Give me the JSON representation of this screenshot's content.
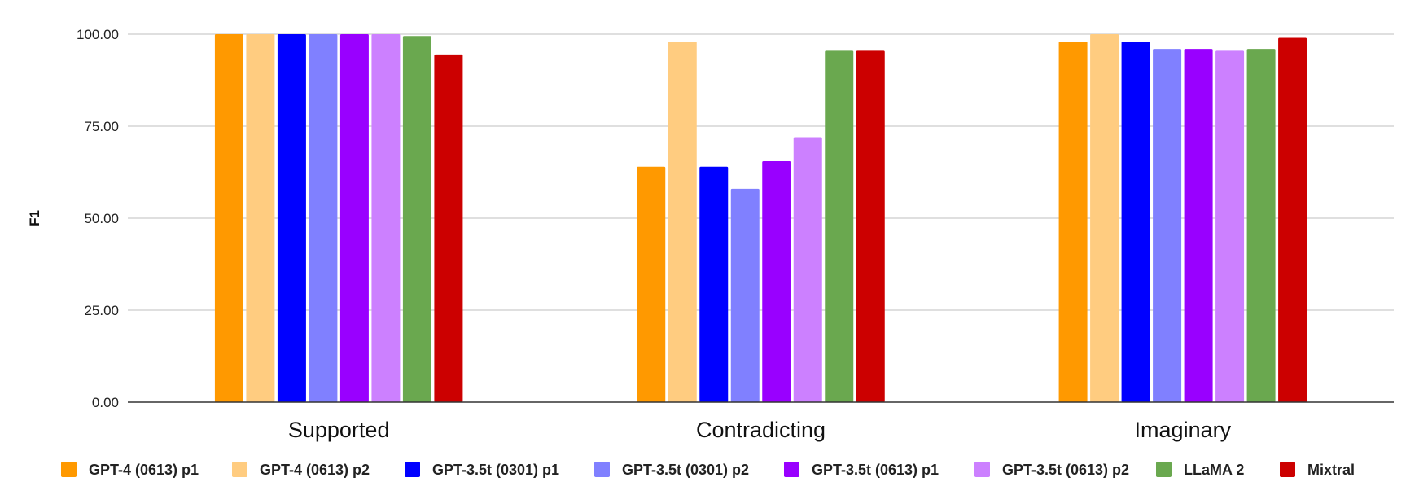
{
  "chart_data": {
    "type": "bar",
    "title": "",
    "xlabel": "",
    "ylabel": "F1",
    "ylim": [
      0,
      100
    ],
    "yticks": [
      "0.00",
      "25.00",
      "50.00",
      "75.00",
      "100.00"
    ],
    "grid": true,
    "legend_position": "bottom",
    "categories": [
      "Supported",
      "Contradicting",
      "Imaginary"
    ],
    "series": [
      {
        "name": "GPT-4 (0613) p1",
        "color": "#ff9900",
        "values": [
          100.0,
          64.0,
          98.0
        ]
      },
      {
        "name": "GPT-4 (0613) p2",
        "color": "#ffcc80",
        "values": [
          100.0,
          98.0,
          100.0
        ]
      },
      {
        "name": "GPT-3.5t (0301) p1",
        "color": "#0000ff",
        "values": [
          100.0,
          64.0,
          98.0
        ]
      },
      {
        "name": "GPT-3.5t (0301) p2",
        "color": "#8080ff",
        "values": [
          100.0,
          58.0,
          96.0
        ]
      },
      {
        "name": "GPT-3.5t (0613) p1",
        "color": "#9900ff",
        "values": [
          100.0,
          65.5,
          96.0
        ]
      },
      {
        "name": "GPT-3.5t (0613) p2",
        "color": "#cc80ff",
        "values": [
          100.0,
          72.0,
          95.5
        ]
      },
      {
        "name": "LLaMA 2",
        "color": "#6aa84f",
        "values": [
          99.5,
          95.5,
          96.0
        ]
      },
      {
        "name": "Mixtral",
        "color": "#cc0000",
        "values": [
          94.5,
          95.5,
          99.0
        ]
      }
    ]
  }
}
